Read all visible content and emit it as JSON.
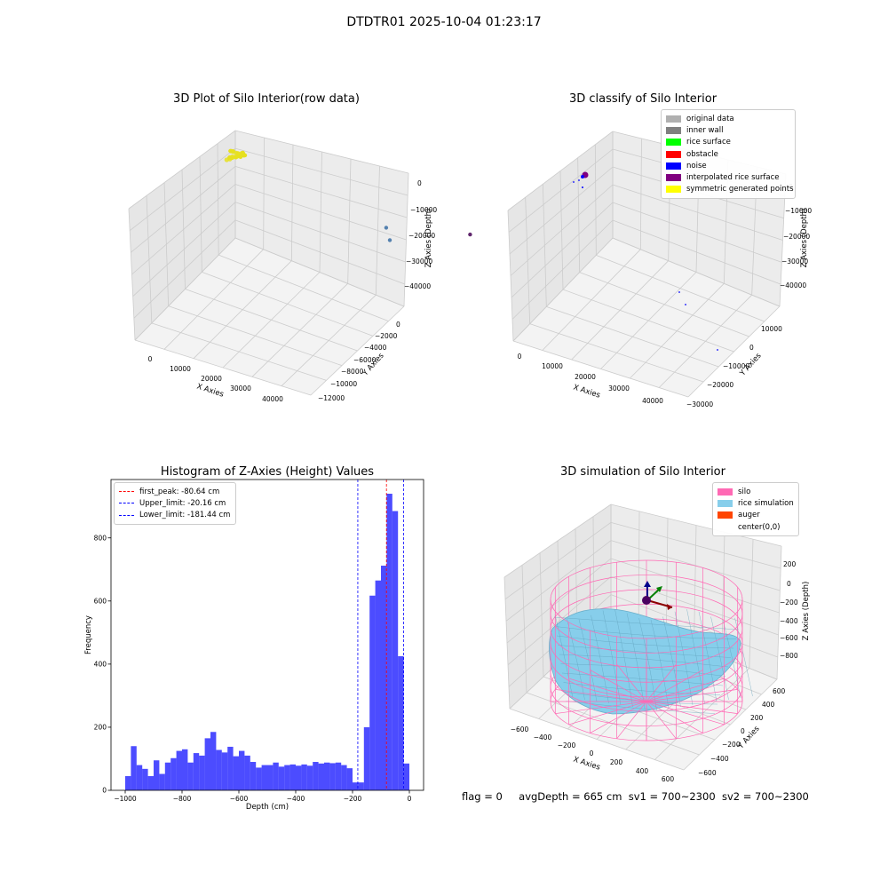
{
  "figure_title": "DTDTR01 2025-10-04 01:23:17",
  "status": {
    "flag": "flag = 0",
    "avg_depth": "avgDepth = 665 cm",
    "sv1": "sv1 = 700~2300",
    "sv2": "sv2 = 700~2300"
  },
  "chart_data": [
    {
      "type": "scatter",
      "title": "3D Plot of Silo Interior(row data)",
      "xlabel": "X Axies",
      "ylabel": "Y Axies",
      "zlabel": "Z Axies (Depth)",
      "x_ticks": [
        "0",
        "10000",
        "20000",
        "30000",
        "40000"
      ],
      "y_ticks": [
        "0",
        "−2000",
        "−4000",
        "−6000",
        "−8000",
        "−10000",
        "−12000"
      ],
      "z_ticks": [
        "0",
        "−10000",
        "−20000",
        "−30000",
        "−40000"
      ],
      "series": [
        {
          "color": "#e6e020",
          "points": [
            [
              600,
              -200,
              -300
            ],
            [
              900,
              -300,
              -500
            ],
            [
              1200,
              -250,
              -700
            ],
            [
              -400,
              200,
              -2000
            ],
            [
              -900,
              400,
              -3000
            ],
            [
              200,
              100,
              -1500
            ],
            [
              -200,
              300,
              -2500
            ]
          ]
        },
        {
          "color": "#3a6ea5",
          "points": [
            [
              26000,
              -9000,
              -42000
            ],
            [
              30000,
              -7500,
              -42500
            ]
          ]
        },
        {
          "color": "#440154",
          "points": [
            [
              43000,
              -12500,
              -44000
            ]
          ]
        }
      ]
    },
    {
      "type": "scatter",
      "title": "3D classify of Silo Interior",
      "xlabel": "X Axies",
      "ylabel": "Y Axies",
      "zlabel": "Z Axies (Depth)",
      "x_ticks": [
        "0",
        "10000",
        "20000",
        "30000",
        "40000"
      ],
      "y_ticks": [
        "10000",
        "0",
        "−10000",
        "−20000",
        "−30000"
      ],
      "z_ticks": [
        "0",
        "−10000",
        "−20000",
        "−30000",
        "−40000"
      ],
      "legend": [
        {
          "label": "original data",
          "color": "#b0b0b0"
        },
        {
          "label": "inner wall",
          "color": "#808080"
        },
        {
          "label": "rice surface",
          "color": "#00ff00"
        },
        {
          "label": "obstacle",
          "color": "#ff0000"
        },
        {
          "label": "noise",
          "color": "#0000ff"
        },
        {
          "label": "interpolated rice surface",
          "color": "#800080"
        },
        {
          "label": "symmetric generated points",
          "color": "#ffff00"
        }
      ]
    },
    {
      "type": "bar",
      "title": "Histogram of Z-Axies (Height) Values",
      "xlabel": "Depth (cm)",
      "ylabel": "Frequency",
      "xlim": [
        -1050,
        50
      ],
      "ylim": [
        0,
        985
      ],
      "x_ticks": [
        -1000,
        -800,
        -600,
        -400,
        -200,
        0
      ],
      "y_ticks": [
        0,
        200,
        400,
        600,
        800
      ],
      "bin_start": -1000,
      "bin_width": 20,
      "values": [
        45,
        140,
        80,
        68,
        45,
        95,
        52,
        88,
        102,
        125,
        130,
        88,
        118,
        110,
        165,
        185,
        128,
        120,
        138,
        108,
        125,
        110,
        90,
        72,
        80,
        80,
        88,
        75,
        80,
        82,
        78,
        82,
        78,
        90,
        85,
        88,
        86,
        88,
        80,
        70,
        25,
        25,
        200,
        617,
        665,
        712,
        940,
        885,
        425,
        85
      ],
      "vlines": [
        {
          "label": "first_peak: -80.64 cm",
          "value": -80.64,
          "color": "#ff0000"
        },
        {
          "label": "Upper_limit: -20.16 cm",
          "value": -20.16,
          "color": "#0000ff"
        },
        {
          "label": "Lower_limit: -181.44 cm",
          "value": -181.44,
          "color": "#0000ff"
        }
      ]
    },
    {
      "type": "surface",
      "title": "3D simulation of Silo Interior",
      "xlabel": "X Axies",
      "ylabel": "Y Axies",
      "zlabel": "Z Axies (Depth)",
      "x_ticks": [
        "−600",
        "−400",
        "−200",
        "0",
        "200",
        "400",
        "600"
      ],
      "y_ticks": [
        "600",
        "400",
        "200",
        "0",
        "−200",
        "−400",
        "−600"
      ],
      "z_ticks": [
        "200",
        "0",
        "−200",
        "−400",
        "−600",
        "−800"
      ],
      "legend": [
        {
          "label": "silo",
          "color": "#ff69b4"
        },
        {
          "label": "rice simulation",
          "color": "#87ceeb"
        },
        {
          "label": "auger",
          "color": "#ff4500"
        },
        {
          "label": "center(0,0)",
          "color": ""
        }
      ]
    }
  ]
}
